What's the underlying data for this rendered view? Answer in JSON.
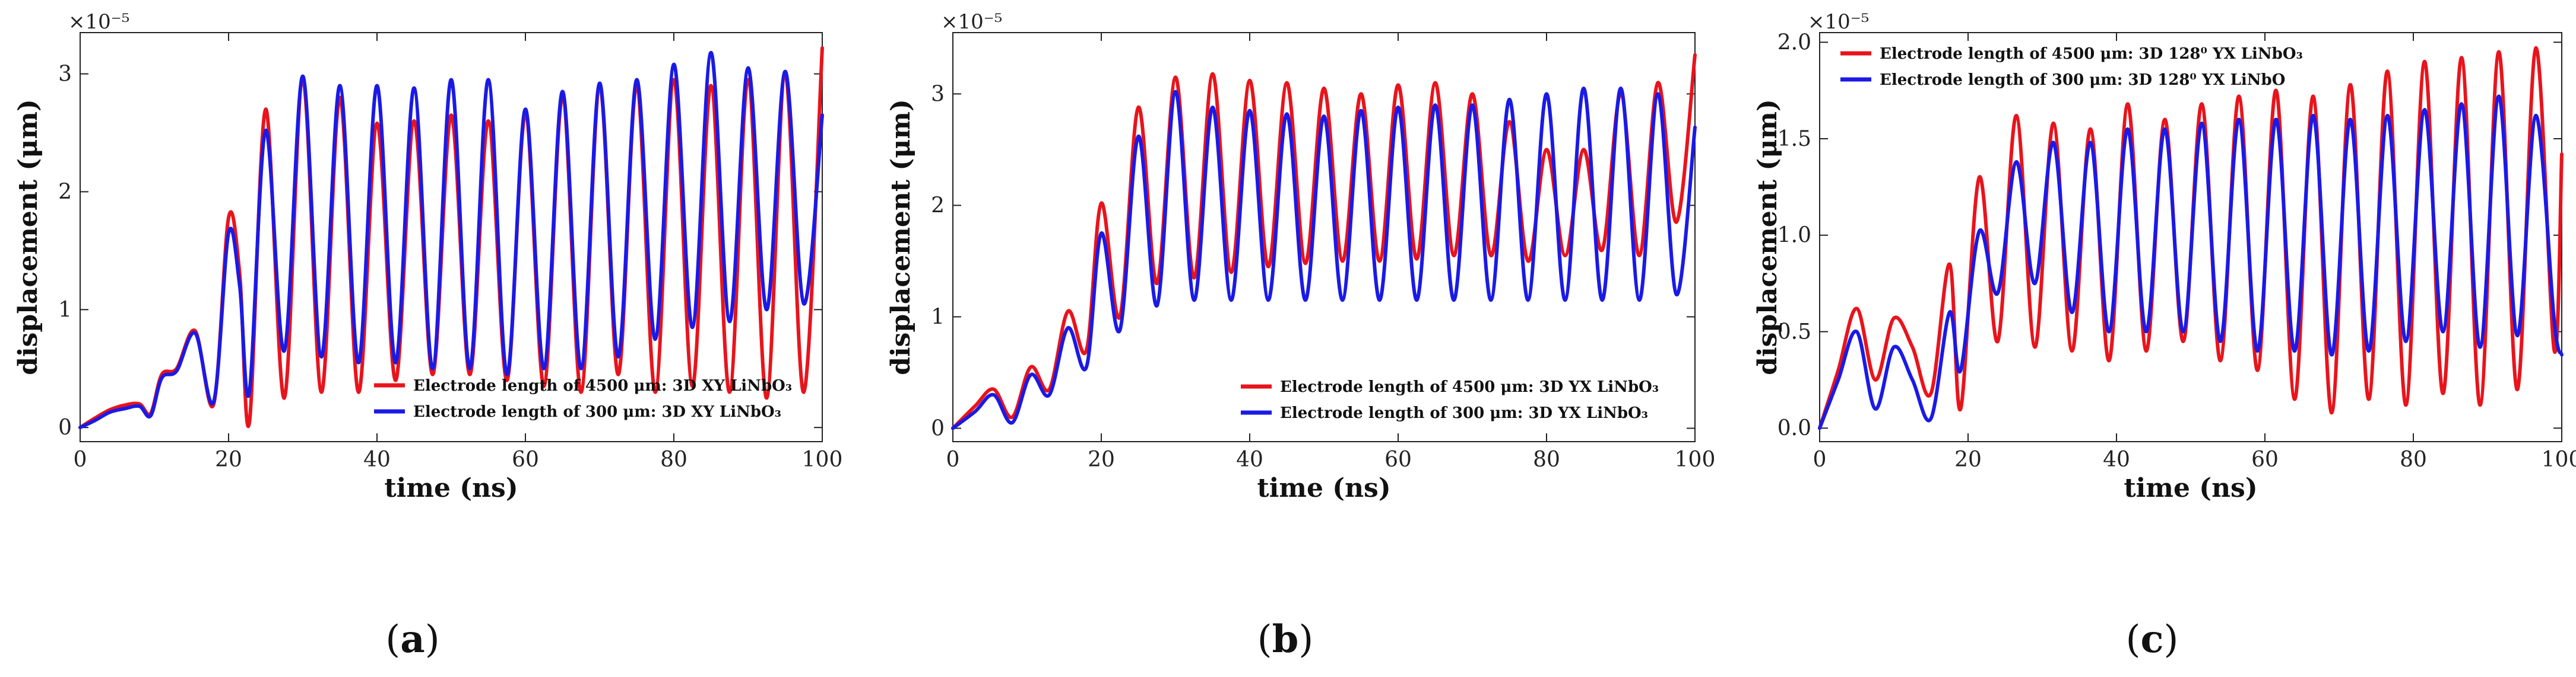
{
  "chart_data": [
    {
      "type": "line",
      "panel_label": "(a)",
      "panel_letter": "a",
      "x_exponent_note": "",
      "y_exponent": "×10⁻⁵",
      "xlabel": "time (ns)",
      "ylabel": "displacement (μm)",
      "xlim": [
        0,
        100
      ],
      "ylim": [
        -0.12,
        3.35
      ],
      "xticks": [
        0,
        20,
        40,
        60,
        80,
        100
      ],
      "yticks": [
        0,
        1,
        2,
        3
      ],
      "ytick_labels": [
        "0",
        "1",
        "2",
        "3"
      ],
      "legend_position": "lower-right",
      "series": [
        {
          "name": "Electrode length of 4500 μm: 3D XY LiNbO₃",
          "color": "#e8141c",
          "x": [
            0,
            2,
            4,
            6,
            8,
            9.5,
            11,
            13,
            15.5,
            18,
            20,
            21.5,
            22.8,
            25,
            27.5,
            30,
            32.5,
            35,
            37.5,
            40,
            42.5,
            45,
            47.5,
            50,
            52.5,
            55,
            57.5,
            60,
            62.5,
            65,
            67.5,
            70,
            72.5,
            75,
            77.5,
            80,
            82.5,
            85,
            87.5,
            90,
            92.5,
            95,
            97.5,
            100
          ],
          "y": [
            0,
            0.08,
            0.15,
            0.19,
            0.2,
            0.12,
            0.45,
            0.5,
            0.82,
            0.2,
            1.78,
            1.3,
            0.04,
            2.7,
            0.25,
            2.95,
            0.3,
            2.8,
            0.3,
            2.58,
            0.4,
            2.6,
            0.45,
            2.65,
            0.45,
            2.6,
            0.4,
            2.65,
            0.35,
            2.8,
            0.3,
            2.9,
            0.45,
            2.9,
            0.3,
            2.95,
            0.35,
            2.9,
            0.3,
            2.95,
            0.25,
            3.0,
            0.3,
            3.22
          ]
        },
        {
          "name": "Electrode length of 300 μm: 3D XY LiNbO₃",
          "color": "#1a1ae6",
          "x": [
            0,
            2,
            4,
            6,
            8,
            9.5,
            11,
            13,
            15.5,
            18,
            20,
            21.5,
            22.8,
            25,
            27.5,
            30,
            32.5,
            35,
            37.5,
            40,
            42.5,
            45,
            47.5,
            50,
            52.5,
            55,
            57.5,
            60,
            62.5,
            65,
            67.5,
            70,
            72.5,
            75,
            77.5,
            80,
            82.5,
            85,
            87.5,
            90,
            92.5,
            95,
            97.5,
            100
          ],
          "y": [
            0,
            0.06,
            0.13,
            0.16,
            0.18,
            0.1,
            0.42,
            0.48,
            0.8,
            0.22,
            1.65,
            1.2,
            0.3,
            2.52,
            0.65,
            2.98,
            0.6,
            2.9,
            0.55,
            2.9,
            0.55,
            2.88,
            0.5,
            2.95,
            0.5,
            2.95,
            0.45,
            2.7,
            0.5,
            2.85,
            0.5,
            2.92,
            0.6,
            2.95,
            0.75,
            3.08,
            0.85,
            3.18,
            0.9,
            3.05,
            1.0,
            3.02,
            1.05,
            2.65
          ]
        }
      ]
    },
    {
      "type": "line",
      "panel_label": "(b)",
      "panel_letter": "b",
      "y_exponent": "×10⁻⁵",
      "xlabel": "time (ns)",
      "ylabel": "displacement (μm)",
      "xlim": [
        0,
        100
      ],
      "ylim": [
        -0.12,
        3.55
      ],
      "xticks": [
        0,
        20,
        40,
        60,
        80,
        100
      ],
      "yticks": [
        0,
        1,
        2,
        3
      ],
      "ytick_labels": [
        "0",
        "1",
        "2",
        "3"
      ],
      "legend_position": "lower-right",
      "series": [
        {
          "name": "Electrode length of 4500 μm: 3D YX LiNbO₃",
          "color": "#e8141c",
          "x": [
            0,
            3,
            5.5,
            8,
            10.5,
            13,
            15.5,
            18,
            20,
            22.5,
            25,
            27.5,
            30,
            32.5,
            35,
            37.5,
            40,
            42.5,
            45,
            47.5,
            50,
            52.5,
            55,
            57.5,
            60,
            62.5,
            65,
            67.5,
            70,
            72.5,
            75,
            77.5,
            80,
            82.5,
            85,
            87.5,
            90,
            92.5,
            95,
            97.5,
            100
          ],
          "y": [
            0,
            0.2,
            0.35,
            0.1,
            0.55,
            0.35,
            1.05,
            0.7,
            2.02,
            1.0,
            2.88,
            1.3,
            3.15,
            1.35,
            3.18,
            1.4,
            3.12,
            1.45,
            3.1,
            1.48,
            3.05,
            1.5,
            3.0,
            1.5,
            3.08,
            1.52,
            3.1,
            1.55,
            3.0,
            1.55,
            2.75,
            1.5,
            2.5,
            1.55,
            2.5,
            1.6,
            3.0,
            1.55,
            3.1,
            1.85,
            3.35
          ]
        },
        {
          "name": "Electrode length of 300 μm: 3D YX LiNbO₃",
          "color": "#1a1ae6",
          "x": [
            0,
            3,
            5.5,
            8,
            10.5,
            13,
            15.5,
            18,
            20,
            22.5,
            25,
            27.5,
            30,
            32.5,
            35,
            37.5,
            40,
            42.5,
            45,
            47.5,
            50,
            52.5,
            55,
            57.5,
            60,
            62.5,
            65,
            67.5,
            70,
            72.5,
            75,
            77.5,
            80,
            82.5,
            85,
            87.5,
            90,
            92.5,
            95,
            97.5,
            100
          ],
          "y": [
            0,
            0.15,
            0.3,
            0.05,
            0.48,
            0.3,
            0.9,
            0.55,
            1.75,
            0.88,
            2.62,
            1.1,
            3.02,
            1.15,
            2.88,
            1.15,
            2.85,
            1.15,
            2.82,
            1.15,
            2.8,
            1.15,
            2.85,
            1.15,
            2.88,
            1.15,
            2.9,
            1.15,
            2.9,
            1.15,
            2.95,
            1.15,
            3.0,
            1.15,
            3.05,
            1.15,
            3.05,
            1.15,
            3.0,
            1.2,
            2.7
          ]
        }
      ]
    },
    {
      "type": "line",
      "panel_label": "(c)",
      "panel_letter": "c",
      "y_exponent": "×10⁻⁵",
      "xlabel": "time (ns)",
      "ylabel": "displacement (μm)",
      "xlim": [
        0,
        100
      ],
      "ylim": [
        -0.07,
        2.05
      ],
      "xticks": [
        0,
        20,
        40,
        60,
        80,
        100
      ],
      "yticks": [
        0,
        0.5,
        1.0,
        1.5,
        2.0
      ],
      "ytick_labels": [
        "0.0",
        "0.5",
        "1.0",
        "1.5",
        "2.0"
      ],
      "legend_position": "top-left",
      "series": [
        {
          "name": "Electrode length of 4500 μm: 3D 128⁰ YX LiNbO₃",
          "color": "#e8141c",
          "x": [
            0,
            2.5,
            5,
            7.5,
            10,
            12.5,
            15,
            17.5,
            19,
            21.5,
            24,
            26.5,
            29,
            31.5,
            34,
            36.5,
            39,
            41.5,
            44,
            46.5,
            49,
            51.5,
            54,
            56.5,
            59,
            61.5,
            64,
            66.5,
            69,
            71.5,
            74,
            76.5,
            79,
            81.5,
            84,
            86.5,
            89,
            91.5,
            94,
            96.5,
            99,
            100
          ],
          "y": [
            0,
            0.3,
            0.62,
            0.25,
            0.57,
            0.42,
            0.18,
            0.85,
            0.1,
            1.3,
            0.45,
            1.62,
            0.42,
            1.58,
            0.4,
            1.55,
            0.35,
            1.68,
            0.4,
            1.6,
            0.45,
            1.68,
            0.35,
            1.72,
            0.3,
            1.75,
            0.15,
            1.72,
            0.08,
            1.78,
            0.15,
            1.85,
            0.12,
            1.9,
            0.18,
            1.92,
            0.12,
            1.95,
            0.2,
            1.97,
            0.4,
            1.42
          ]
        },
        {
          "name": "Electrode length of 300 μm: 3D 128⁰ YX LiNbO",
          "color": "#1a1ae6",
          "x": [
            0,
            2.5,
            5,
            7.5,
            10,
            12.5,
            15,
            17.5,
            19,
            21.5,
            24,
            26.5,
            29,
            31.5,
            34,
            36.5,
            39,
            41.5,
            44,
            46.5,
            49,
            51.5,
            54,
            56.5,
            59,
            61.5,
            64,
            66.5,
            69,
            71.5,
            74,
            76.5,
            79,
            81.5,
            84,
            86.5,
            89,
            91.5,
            94,
            96.5,
            99,
            100
          ],
          "y": [
            0,
            0.25,
            0.5,
            0.1,
            0.42,
            0.25,
            0.05,
            0.6,
            0.3,
            1.02,
            0.7,
            1.38,
            0.75,
            1.48,
            0.6,
            1.48,
            0.5,
            1.55,
            0.5,
            1.55,
            0.5,
            1.58,
            0.45,
            1.6,
            0.4,
            1.6,
            0.4,
            1.62,
            0.38,
            1.6,
            0.4,
            1.62,
            0.45,
            1.65,
            0.5,
            1.68,
            0.42,
            1.72,
            0.48,
            1.62,
            0.55,
            0.38
          ]
        }
      ]
    }
  ]
}
